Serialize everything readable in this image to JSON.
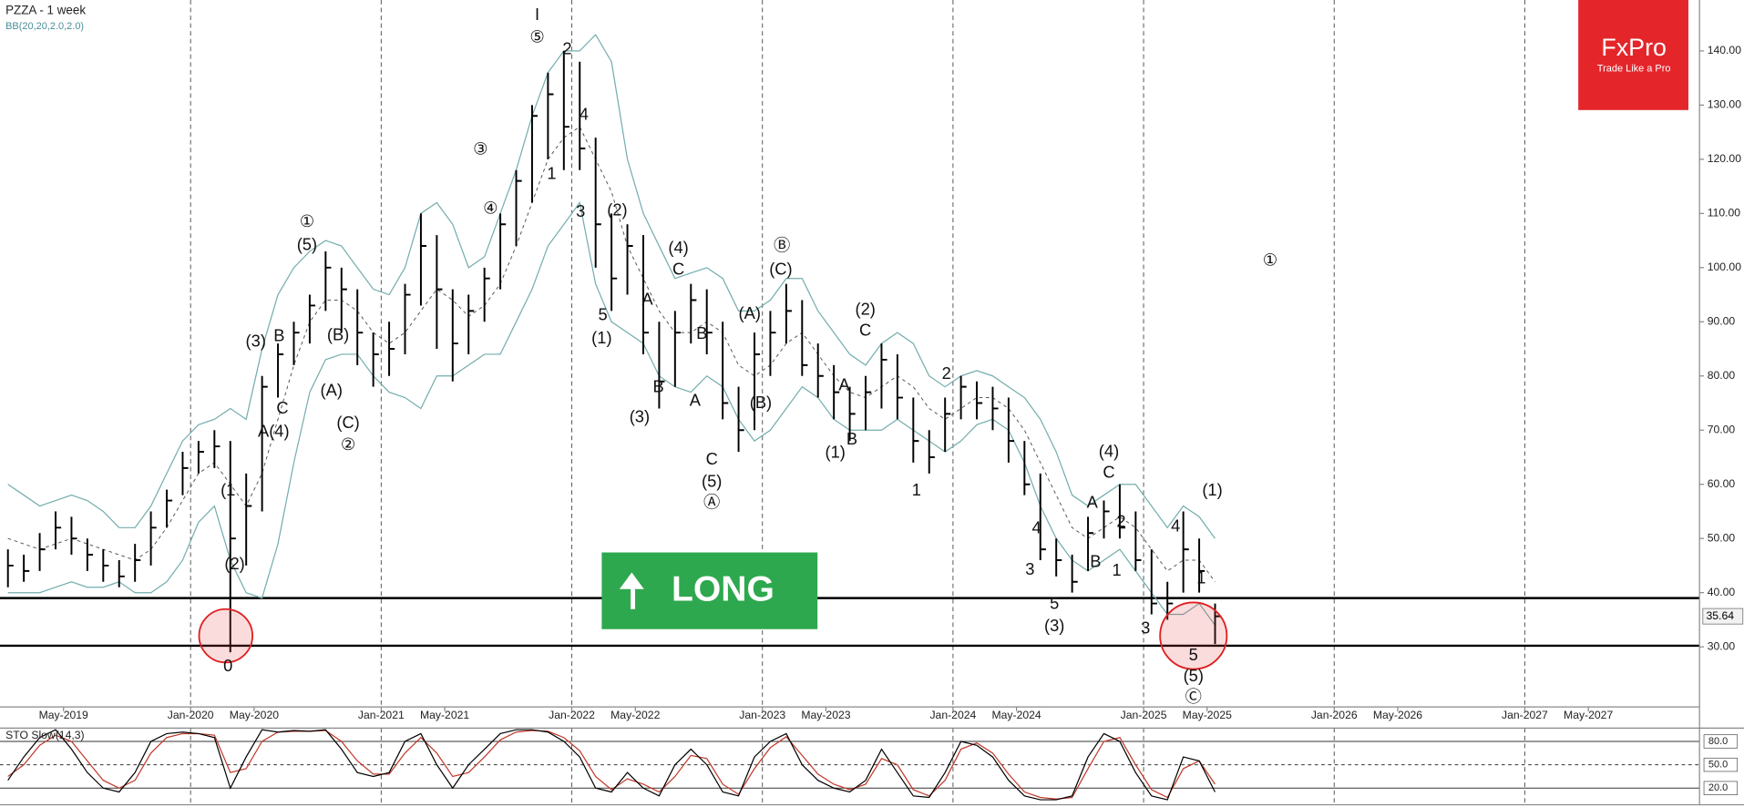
{
  "chart_data": {
    "type": "ohlc",
    "title": "PZZA - 1 week",
    "indicator": "BB(20,20,2.0,2.0)",
    "x": [
      "2019-01",
      "2019-02",
      "2019-03",
      "2019-04",
      "2019-05",
      "2019-06",
      "2019-07",
      "2019-08",
      "2019-09",
      "2019-10",
      "2019-11",
      "2019-12",
      "2020-01",
      "2020-02",
      "2020-03",
      "2020-04",
      "2020-05",
      "2020-06",
      "2020-07",
      "2020-08",
      "2020-09",
      "2020-10",
      "2020-11",
      "2020-12",
      "2021-01",
      "2021-02",
      "2021-03",
      "2021-04",
      "2021-05",
      "2021-06",
      "2021-07",
      "2021-08",
      "2021-09",
      "2021-10",
      "2021-11",
      "2021-12",
      "2022-01",
      "2022-02",
      "2022-03",
      "2022-04",
      "2022-05",
      "2022-06",
      "2022-07",
      "2022-08",
      "2022-09",
      "2022-10",
      "2022-11",
      "2022-12",
      "2023-01",
      "2023-02",
      "2023-03",
      "2023-04",
      "2023-05",
      "2023-06",
      "2023-07",
      "2023-08",
      "2023-09",
      "2023-10",
      "2023-11",
      "2023-12",
      "2024-01",
      "2024-02",
      "2024-03",
      "2024-04",
      "2024-05",
      "2024-06",
      "2024-07",
      "2024-08",
      "2024-09",
      "2024-10",
      "2024-11",
      "2024-12",
      "2025-01",
      "2025-02",
      "2025-03",
      "2025-04",
      "2025-05"
    ],
    "high": [
      48,
      47,
      51,
      55,
      54,
      50,
      48,
      46,
      49,
      55,
      59,
      66,
      68,
      70,
      68,
      62,
      80,
      86,
      90,
      95,
      103,
      100,
      96,
      88,
      90,
      97,
      110,
      106,
      96,
      95,
      100,
      110,
      118,
      130,
      136,
      140,
      138,
      124,
      110,
      108,
      106,
      90,
      92,
      97,
      96,
      90,
      78,
      88,
      92,
      97,
      94,
      86,
      82,
      78,
      80,
      86,
      84,
      76,
      70,
      76,
      80,
      79,
      78,
      76,
      68,
      62,
      50,
      47,
      54,
      57,
      60,
      55,
      48,
      42,
      55,
      50,
      38
    ],
    "low": [
      41,
      42,
      44,
      48,
      47,
      44,
      42,
      41,
      42,
      45,
      52,
      58,
      62,
      63,
      29,
      45,
      55,
      76,
      82,
      86,
      92,
      88,
      82,
      78,
      80,
      84,
      93,
      85,
      79,
      84,
      90,
      96,
      104,
      112,
      120,
      118,
      118,
      100,
      92,
      95,
      84,
      74,
      78,
      86,
      84,
      72,
      66,
      70,
      80,
      86,
      80,
      76,
      72,
      68,
      70,
      74,
      72,
      64,
      62,
      66,
      72,
      72,
      70,
      64,
      58,
      46,
      43,
      40,
      44,
      50,
      50,
      44,
      36,
      35,
      40,
      40,
      30.5
    ],
    "close": [
      45,
      44,
      48,
      52,
      50,
      47,
      45,
      43,
      46,
      52,
      57,
      63,
      66,
      67,
      50,
      56,
      78,
      84,
      88,
      93,
      100,
      96,
      88,
      84,
      85,
      95,
      104,
      96,
      86,
      92,
      98,
      108,
      116,
      128,
      132,
      126,
      122,
      108,
      98,
      104,
      88,
      79,
      88,
      94,
      88,
      75,
      70,
      84,
      88,
      92,
      82,
      80,
      77,
      73,
      77,
      83,
      76,
      68,
      65,
      73,
      78,
      75,
      74,
      68,
      60,
      48,
      46,
      42,
      51,
      55,
      52,
      46,
      38,
      38,
      48,
      44,
      35.64
    ],
    "bar_color": "#000000",
    "bb_upper": [
      60,
      58,
      56,
      57,
      58,
      57,
      55,
      52,
      52,
      56,
      62,
      68,
      71,
      72,
      74,
      72,
      85,
      95,
      100,
      103,
      105,
      104,
      100,
      96,
      95,
      100,
      110,
      112,
      108,
      100,
      102,
      110,
      118,
      128,
      136,
      140,
      140,
      143,
      138,
      120,
      110,
      104,
      98,
      99,
      100,
      98,
      92,
      92,
      94,
      98,
      98,
      92,
      88,
      84,
      82,
      86,
      88,
      86,
      80,
      78,
      80,
      81,
      80,
      78,
      76,
      72,
      66,
      58,
      56,
      58,
      60,
      60,
      56,
      52,
      56,
      54,
      50
    ],
    "bb_mid": [
      50,
      49,
      48,
      49,
      50,
      49,
      48,
      47,
      46,
      48,
      52,
      57,
      62,
      64,
      60,
      56,
      62,
      72,
      82,
      90,
      94,
      94,
      92,
      88,
      86,
      88,
      92,
      96,
      94,
      91,
      93,
      97,
      104,
      112,
      120,
      124,
      126,
      120,
      114,
      104,
      98,
      92,
      88,
      88,
      90,
      88,
      82,
      80,
      82,
      86,
      88,
      84,
      80,
      77,
      76,
      78,
      80,
      78,
      74,
      72,
      74,
      76,
      76,
      74,
      70,
      64,
      58,
      52,
      50,
      52,
      54,
      52,
      48,
      44,
      46,
      46,
      42
    ],
    "bb_lower": [
      40,
      40,
      40,
      41,
      42,
      41,
      41,
      42,
      40,
      40,
      42,
      46,
      53,
      56,
      46,
      40,
      39,
      49,
      64,
      77,
      83,
      84,
      84,
      80,
      77,
      76,
      74,
      80,
      80,
      82,
      84,
      84,
      90,
      96,
      104,
      108,
      112,
      97,
      90,
      88,
      86,
      80,
      78,
      77,
      80,
      78,
      72,
      68,
      70,
      74,
      78,
      76,
      72,
      70,
      70,
      70,
      72,
      70,
      68,
      66,
      68,
      71,
      72,
      70,
      64,
      56,
      50,
      46,
      44,
      46,
      48,
      44,
      40,
      36,
      36,
      38,
      34
    ],
    "bb_color": "#74adad",
    "xlim": [
      "2019-01",
      "2027-12"
    ],
    "xticks": [
      {
        "value": "2019-05",
        "label": "May-2019"
      },
      {
        "value": "2020-01",
        "label": "Jan-2020"
      },
      {
        "value": "2020-05",
        "label": "May-2020"
      },
      {
        "value": "2021-01",
        "label": "Jan-2021"
      },
      {
        "value": "2021-05",
        "label": "May-2021"
      },
      {
        "value": "2022-01",
        "label": "Jan-2022"
      },
      {
        "value": "2022-05",
        "label": "May-2022"
      },
      {
        "value": "2023-01",
        "label": "Jan-2023"
      },
      {
        "value": "2023-05",
        "label": "May-2023"
      },
      {
        "value": "2024-01",
        "label": "Jan-2024"
      },
      {
        "value": "2024-05",
        "label": "May-2024"
      },
      {
        "value": "2025-01",
        "label": "Jan-2025"
      },
      {
        "value": "2025-05",
        "label": "May-2025"
      },
      {
        "value": "2026-01",
        "label": "Jan-2026"
      },
      {
        "value": "2026-05",
        "label": "May-2026"
      },
      {
        "value": "2027-01",
        "label": "Jan-2027"
      },
      {
        "value": "2027-05",
        "label": "May-2027"
      }
    ],
    "ylim": [
      18.9,
      149.4
    ],
    "yticks": [
      {
        "value": 30,
        "label": "30.00"
      },
      {
        "value": 40,
        "label": "40.00"
      },
      {
        "value": 50,
        "label": "50.00"
      },
      {
        "value": 60,
        "label": "60.00"
      },
      {
        "value": 70,
        "label": "70.00"
      },
      {
        "value": 80,
        "label": "80.00"
      },
      {
        "value": 90,
        "label": "90.00"
      },
      {
        "value": 100,
        "label": "100.00"
      },
      {
        "value": 110,
        "label": "110.00"
      },
      {
        "value": 120,
        "label": "120.00"
      },
      {
        "value": 130,
        "label": "130.00"
      },
      {
        "value": 140,
        "label": "140.00"
      }
    ],
    "hlines": [
      39,
      30.2
    ],
    "annotations": [
      "I",
      "⑤",
      "2",
      "4",
      "1",
      "3",
      "(2)",
      "5",
      "(1)",
      "(4)",
      "C",
      "A",
      "B",
      "B",
      "A",
      "(3)",
      "C",
      "(5)",
      "Ⓐ",
      "Ⓑ",
      "(C)",
      "(A)",
      "(B)",
      "(2)",
      "C",
      "A",
      "B",
      "(1)",
      "2",
      "1",
      "4",
      "3",
      "5",
      "(3)",
      "B",
      "A",
      "(4)",
      "C",
      "2",
      "1",
      "3",
      "4",
      "1",
      "5",
      "(5)",
      "Ⓒ",
      "(1)",
      "①",
      "①",
      "(5)",
      "(3)",
      "B",
      "C",
      "A(4)",
      "(B)",
      "(A)",
      "(C)",
      "②",
      "③",
      "④",
      "(1",
      "(2)",
      "0"
    ],
    "stoch": {
      "title": "STO Slow(14,3)",
      "k": [
        30,
        60,
        85,
        95,
        70,
        40,
        20,
        15,
        40,
        80,
        90,
        92,
        90,
        85,
        20,
        60,
        95,
        92,
        94,
        93,
        95,
        70,
        40,
        35,
        40,
        80,
        90,
        50,
        20,
        50,
        70,
        90,
        95,
        95,
        92,
        80,
        60,
        20,
        15,
        40,
        20,
        10,
        50,
        70,
        50,
        15,
        10,
        60,
        80,
        90,
        50,
        30,
        20,
        15,
        30,
        70,
        40,
        10,
        8,
        40,
        80,
        75,
        60,
        30,
        10,
        5,
        5,
        10,
        60,
        90,
        80,
        40,
        10,
        5,
        60,
        55,
        15
      ],
      "d": [
        35,
        50,
        75,
        88,
        80,
        55,
        30,
        20,
        30,
        65,
        85,
        90,
        90,
        88,
        40,
        45,
        80,
        92,
        93,
        93,
        94,
        80,
        55,
        38,
        38,
        65,
        85,
        65,
        35,
        40,
        60,
        82,
        92,
        94,
        93,
        85,
        68,
        35,
        18,
        32,
        25,
        15,
        35,
        62,
        58,
        25,
        12,
        45,
        72,
        86,
        62,
        38,
        25,
        18,
        25,
        58,
        50,
        18,
        10,
        30,
        70,
        78,
        65,
        38,
        15,
        8,
        6,
        8,
        45,
        80,
        85,
        50,
        18,
        8,
        45,
        55,
        25
      ],
      "k_color": "#000000",
      "d_color": "#c0392b",
      "ylim": [
        0,
        100
      ],
      "yticks": [
        {
          "value": 20,
          "label": "20.0"
        },
        {
          "value": 50,
          "label": "50.0"
        },
        {
          "value": 80,
          "label": "80.0"
        }
      ]
    }
  },
  "button": {
    "label": "LONG"
  },
  "logo": {
    "name": "FxPro",
    "tagline": "Trade Like a Pro"
  }
}
